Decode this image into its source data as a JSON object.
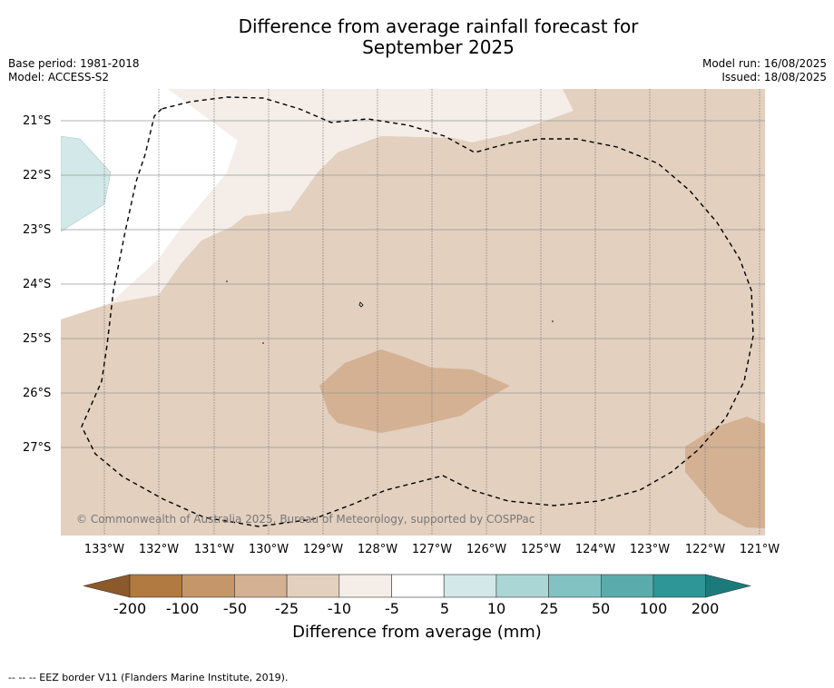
{
  "title_line1": "Difference from average rainfall forecast for",
  "title_line2": "September 2025",
  "base_period": "Base period: 1981-2018",
  "model": "Model: ACCESS-S2",
  "model_run": "Model run: 16/08/2025",
  "issued": "Issued: 18/08/2025",
  "lat_labels": [
    "21°S",
    "22°S",
    "23°S",
    "24°S",
    "25°S",
    "26°S",
    "27°S"
  ],
  "lon_labels": [
    "133°W",
    "132°W",
    "131°W",
    "130°W",
    "129°W",
    "128°W",
    "127°W",
    "126°W",
    "125°W",
    "124°W",
    "123°W",
    "122°W",
    "121°W"
  ],
  "copyright": "© Commonwealth of Australia 2025, Bureau of Meteorology, supported by COSPPac",
  "colorbar": {
    "ticks": [
      "-200",
      "-100",
      "-50",
      "-25",
      "-10",
      "-5",
      "5",
      "10",
      "25",
      "50",
      "100",
      "200"
    ],
    "colors": [
      "#8c5a2a",
      "#b07a40",
      "#c4966a",
      "#d4b193",
      "#e3d0bf",
      "#f5ede7",
      "#ffffff",
      "#d3e8e8",
      "#abd6d6",
      "#82c2c2",
      "#5aacac",
      "#2e9696",
      "#1c7a7a"
    ],
    "label": "Difference from average (mm)"
  },
  "footnote": "--  --  -- EEZ border V11 (Flanders Marine Institute, 2019)."
}
